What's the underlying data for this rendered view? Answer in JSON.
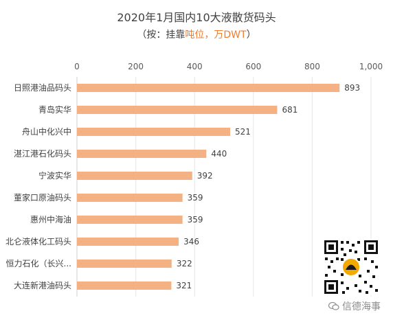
{
  "chart_data": {
    "type": "bar",
    "orientation": "horizontal",
    "title": "2020年1月国内10大液散货码头",
    "subtitle_prefix": "（按：挂靠",
    "subtitle_highlight": "吨位，万DWT",
    "subtitle_suffix": "）",
    "categories": [
      "日照港油品码头",
      "青岛实华",
      "舟山中化兴中",
      "湛江港石化码头",
      "宁波实华",
      "董家口原油码头",
      "惠州中海油",
      "北仑液体化工码头",
      "恒力石化（长兴...",
      "大连新港油码头"
    ],
    "values": [
      893,
      681,
      521,
      440,
      392,
      359,
      359,
      346,
      322,
      321
    ],
    "xlim": [
      0,
      1000
    ],
    "xticks": [
      "0",
      "200",
      "400",
      "600",
      "800",
      "1,000"
    ],
    "xtick_values": [
      0,
      200,
      400,
      600,
      800,
      1000
    ],
    "axis_position": "top",
    "grid": true,
    "bar_color": "#f4b183",
    "highlight_color": "#ed7d31"
  },
  "watermark": {
    "text": "信德海事",
    "icon": "wechat-icon"
  },
  "qr_icon": "qr-code-icon"
}
